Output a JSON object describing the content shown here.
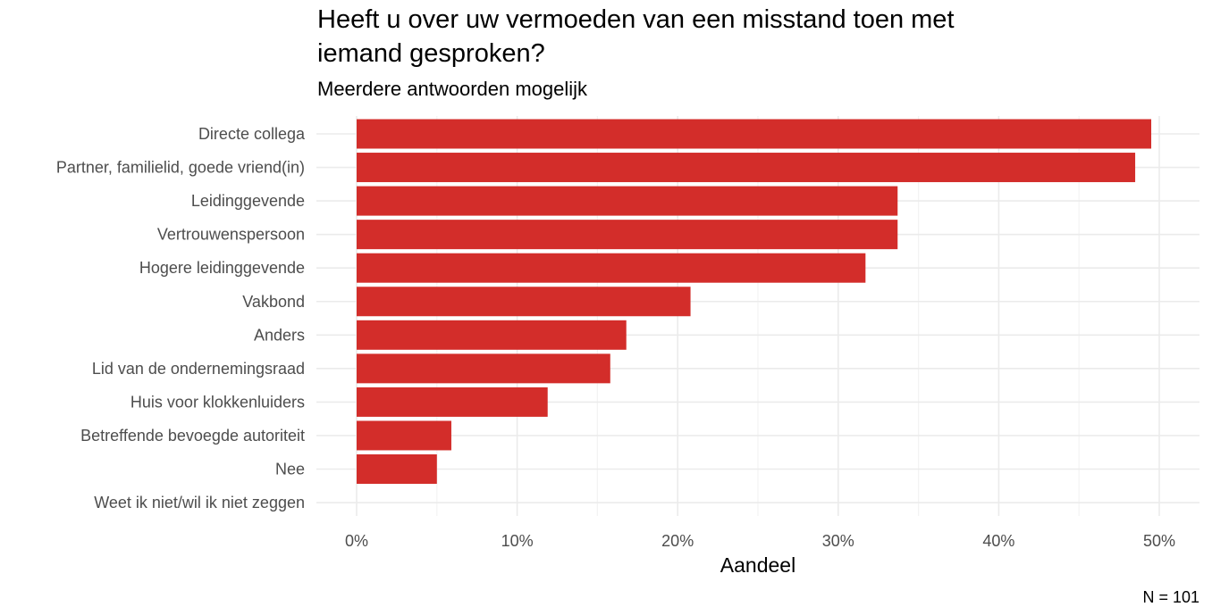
{
  "chart_data": {
    "type": "bar",
    "orientation": "horizontal",
    "title_lines": [
      "Heeft u over uw vermoeden van een misstand toen met",
      "iemand gesproken?"
    ],
    "subtitle": "Meerdere antwoorden mogelijk",
    "xlabel": "Aandeel",
    "ylabel": "",
    "caption": "N = 101",
    "xlim": [
      0,
      0.5
    ],
    "x_ticks": [
      0,
      0.1,
      0.2,
      0.3,
      0.4,
      0.5
    ],
    "x_tick_labels": [
      "0%",
      "10%",
      "20%",
      "30%",
      "40%",
      "50%"
    ],
    "categories": [
      "Directe collega",
      "Partner, familielid, goede vriend(in)",
      "Leidinggevende",
      "Vertrouwenspersoon",
      "Hogere leidinggevende",
      "Vakbond",
      "Anders",
      "Lid van de ondernemingsraad",
      "Huis voor klokkenluiders",
      "Betreffende bevoegde autoriteit",
      "Nee",
      "Weet ik niet/wil ik niet zeggen"
    ],
    "values": [
      0.495,
      0.485,
      0.337,
      0.337,
      0.317,
      0.208,
      0.168,
      0.158,
      0.119,
      0.059,
      0.05,
      0.0
    ],
    "bar_color": "#d32d2a",
    "grid": true,
    "legend": "none"
  }
}
